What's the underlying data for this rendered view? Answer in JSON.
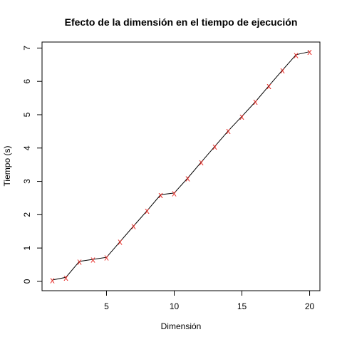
{
  "chart_data": {
    "type": "line",
    "title": "Efecto de la dimensión en el tiempo de ejecución",
    "xlabel": "Dimensión",
    "ylabel": "Tiempo (s)",
    "xlim": [
      0.24,
      20.76
    ],
    "ylim": [
      -0.28,
      7.18
    ],
    "xticks": [
      5,
      10,
      15,
      20
    ],
    "yticks": [
      0,
      1,
      2,
      3,
      4,
      5,
      6,
      7
    ],
    "grid": false,
    "marker": "x",
    "marker_color": "#e8312c",
    "line_color": "#000000",
    "x": [
      1,
      2,
      3,
      4,
      5,
      6,
      7,
      8,
      9,
      10,
      11,
      12,
      13,
      14,
      15,
      16,
      17,
      18,
      19,
      20
    ],
    "y": [
      0.04,
      0.12,
      0.6,
      0.66,
      0.72,
      1.19,
      1.66,
      2.12,
      2.6,
      2.65,
      3.1,
      3.58,
      4.05,
      4.52,
      4.95,
      5.39,
      5.87,
      6.34,
      6.8,
      6.89
    ]
  }
}
